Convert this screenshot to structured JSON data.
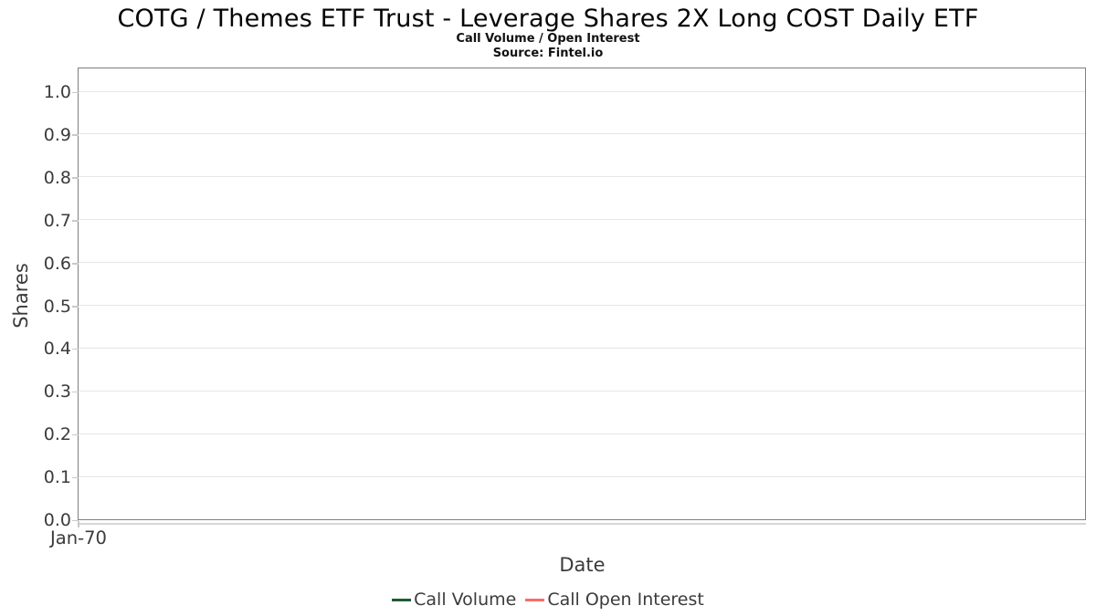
{
  "header": {
    "title": "COTG / Themes ETF Trust - Leverage Shares 2X Long COST Daily ETF",
    "subtitle": "Call Volume / Open Interest",
    "source": "Source: Fintel.io"
  },
  "chart_data": {
    "type": "line",
    "title": "COTG / Themes ETF Trust - Leverage Shares 2X Long COST Daily ETF",
    "subtitle": "Call Volume / Open Interest",
    "source_note": "Source: Fintel.io",
    "xlabel": "Date",
    "ylabel": "Shares",
    "x_ticks": [
      "Jan-70"
    ],
    "y_ticks": [
      "0.0",
      "0.1",
      "0.2",
      "0.3",
      "0.4",
      "0.5",
      "0.6",
      "0.7",
      "0.8",
      "0.9",
      "1.0"
    ],
    "ylim": [
      0.0,
      1.055
    ],
    "grid": true,
    "legend_position": "bottom",
    "series": [
      {
        "name": "Call Volume",
        "color": "#1f5b35",
        "x": [],
        "values": []
      },
      {
        "name": "Call Open Interest",
        "color": "#fb6b6b",
        "x": [],
        "values": []
      }
    ],
    "colors": {
      "plot_border": "#7f7f7f",
      "gridline": "#e6e6e6",
      "tick_mark": "#c9c9c9",
      "axis_line": "#d6d6d6",
      "text": "#3b3b3b"
    }
  }
}
